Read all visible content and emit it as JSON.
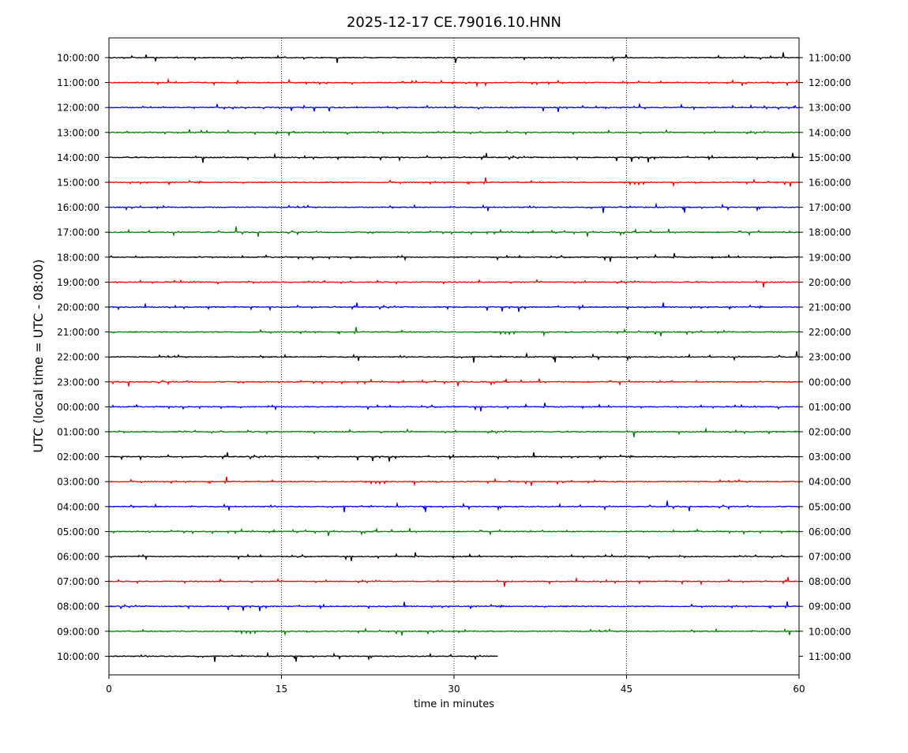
{
  "chart_data": {
    "type": "line",
    "title": "2025-12-17 CE.79016.10.HNN",
    "xlabel": "time in minutes",
    "ylabel": "UTC (local time = UTC - 08:00)",
    "xlim": [
      0,
      60
    ],
    "x_ticks": [
      "0",
      "15",
      "30",
      "45",
      "60"
    ],
    "grid": "vertical dotted lines at 15, 30, 45",
    "trace_colors": [
      "#000000",
      "#ff0000",
      "#0000ff",
      "#008000"
    ],
    "rows": [
      {
        "left": "10:00:00",
        "right": "11:00:00",
        "end_minute": 60
      },
      {
        "left": "11:00:00",
        "right": "12:00:00",
        "end_minute": 60
      },
      {
        "left": "12:00:00",
        "right": "13:00:00",
        "end_minute": 60
      },
      {
        "left": "13:00:00",
        "right": "14:00:00",
        "end_minute": 60
      },
      {
        "left": "14:00:00",
        "right": "15:00:00",
        "end_minute": 60
      },
      {
        "left": "15:00:00",
        "right": "16:00:00",
        "end_minute": 60
      },
      {
        "left": "16:00:00",
        "right": "17:00:00",
        "end_minute": 60
      },
      {
        "left": "17:00:00",
        "right": "18:00:00",
        "end_minute": 60
      },
      {
        "left": "18:00:00",
        "right": "19:00:00",
        "end_minute": 60
      },
      {
        "left": "19:00:00",
        "right": "20:00:00",
        "end_minute": 60
      },
      {
        "left": "20:00:00",
        "right": "21:00:00",
        "end_minute": 60
      },
      {
        "left": "21:00:00",
        "right": "22:00:00",
        "end_minute": 60
      },
      {
        "left": "22:00:00",
        "right": "23:00:00",
        "end_minute": 60
      },
      {
        "left": "23:00:00",
        "right": "00:00:00",
        "end_minute": 60
      },
      {
        "left": "00:00:00",
        "right": "01:00:00",
        "end_minute": 60
      },
      {
        "left": "01:00:00",
        "right": "02:00:00",
        "end_minute": 60
      },
      {
        "left": "02:00:00",
        "right": "03:00:00",
        "end_minute": 60
      },
      {
        "left": "03:00:00",
        "right": "04:00:00",
        "end_minute": 60
      },
      {
        "left": "04:00:00",
        "right": "05:00:00",
        "end_minute": 60
      },
      {
        "left": "05:00:00",
        "right": "06:00:00",
        "end_minute": 60
      },
      {
        "left": "06:00:00",
        "right": "07:00:00",
        "end_minute": 60
      },
      {
        "left": "07:00:00",
        "right": "08:00:00",
        "end_minute": 60
      },
      {
        "left": "08:00:00",
        "right": "09:00:00",
        "end_minute": 60
      },
      {
        "left": "09:00:00",
        "right": "10:00:00",
        "end_minute": 60
      },
      {
        "left": "10:00:00",
        "right": "11:00:00",
        "end_minute": 33.8
      }
    ]
  }
}
